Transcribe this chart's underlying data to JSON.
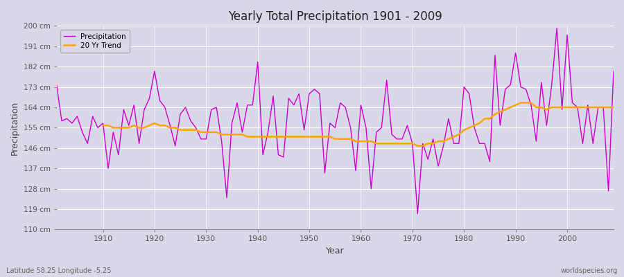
{
  "title": "Yearly Total Precipitation 1901 - 2009",
  "xlabel": "Year",
  "ylabel": "Precipitation",
  "bottom_left_label": "Latitude 58.25 Longitude -5.25",
  "bottom_right_label": "worldspecies.org",
  "ylim": [
    110,
    200
  ],
  "yticks": [
    110,
    119,
    128,
    137,
    146,
    155,
    164,
    173,
    182,
    191,
    200
  ],
  "ytick_labels": [
    "110 cm",
    "119 cm",
    "128 cm",
    "137 cm",
    "146 cm",
    "155 cm",
    "164 cm",
    "173 cm",
    "182 cm",
    "191 cm",
    "200 cm"
  ],
  "xlim": [
    1901,
    2009
  ],
  "xticks": [
    1910,
    1920,
    1930,
    1940,
    1950,
    1960,
    1970,
    1980,
    1990,
    2000
  ],
  "precip_color": "#cc00cc",
  "trend_color": "#FFA500",
  "bg_color": "#d8d8e8",
  "plot_bg_color": "#d8d8e8",
  "grid_color": "#ffffff",
  "years": [
    1901,
    1902,
    1903,
    1904,
    1905,
    1906,
    1907,
    1908,
    1909,
    1910,
    1911,
    1912,
    1913,
    1914,
    1915,
    1916,
    1917,
    1918,
    1919,
    1920,
    1921,
    1922,
    1923,
    1924,
    1925,
    1926,
    1927,
    1928,
    1929,
    1930,
    1931,
    1932,
    1933,
    1934,
    1935,
    1936,
    1937,
    1938,
    1939,
    1940,
    1941,
    1942,
    1943,
    1944,
    1945,
    1946,
    1947,
    1948,
    1949,
    1950,
    1951,
    1952,
    1953,
    1954,
    1955,
    1956,
    1957,
    1958,
    1959,
    1960,
    1961,
    1962,
    1963,
    1964,
    1965,
    1966,
    1967,
    1968,
    1969,
    1970,
    1971,
    1972,
    1973,
    1974,
    1975,
    1976,
    1977,
    1978,
    1979,
    1980,
    1981,
    1982,
    1983,
    1984,
    1985,
    1986,
    1987,
    1988,
    1989,
    1990,
    1991,
    1992,
    1993,
    1994,
    1995,
    1996,
    1997,
    1998,
    1999,
    2000,
    2001,
    2002,
    2003,
    2004,
    2005,
    2006,
    2007,
    2008,
    2009
  ],
  "precip": [
    174,
    158,
    159,
    157,
    160,
    153,
    148,
    160,
    155,
    157,
    137,
    153,
    143,
    163,
    156,
    165,
    148,
    163,
    168,
    180,
    167,
    164,
    156,
    147,
    161,
    164,
    158,
    155,
    150,
    150,
    163,
    164,
    149,
    124,
    157,
    166,
    153,
    165,
    165,
    184,
    143,
    153,
    169,
    143,
    142,
    168,
    165,
    170,
    154,
    170,
    172,
    170,
    135,
    157,
    155,
    166,
    164,
    155,
    136,
    165,
    155,
    128,
    153,
    155,
    176,
    152,
    150,
    150,
    156,
    148,
    117,
    148,
    141,
    150,
    138,
    147,
    159,
    148,
    148,
    173,
    170,
    155,
    148,
    148,
    140,
    187,
    156,
    172,
    174,
    188,
    173,
    172,
    165,
    149,
    175,
    156,
    174,
    199,
    163,
    196,
    166,
    164,
    148,
    165,
    148,
    164,
    164,
    127,
    180
  ],
  "trend": [
    null,
    null,
    null,
    null,
    null,
    null,
    null,
    null,
    null,
    156,
    156,
    155,
    155,
    155,
    155,
    156,
    155,
    155,
    156,
    157,
    156,
    156,
    155,
    155,
    154,
    154,
    154,
    154,
    153,
    153,
    153,
    153,
    152,
    152,
    152,
    152,
    152,
    151,
    151,
    151,
    151,
    151,
    151,
    151,
    151,
    151,
    151,
    151,
    151,
    151,
    151,
    151,
    151,
    151,
    150,
    150,
    150,
    150,
    149,
    149,
    149,
    149,
    148,
    148,
    148,
    148,
    148,
    148,
    148,
    148,
    147,
    147,
    148,
    148,
    149,
    149,
    150,
    151,
    152,
    154,
    155,
    156,
    157,
    159,
    159,
    161,
    162,
    163,
    164,
    165,
    166,
    166,
    166,
    164,
    164,
    163,
    164,
    164,
    164,
    164,
    164,
    164,
    164,
    164,
    164,
    164,
    164,
    164,
    164
  ]
}
